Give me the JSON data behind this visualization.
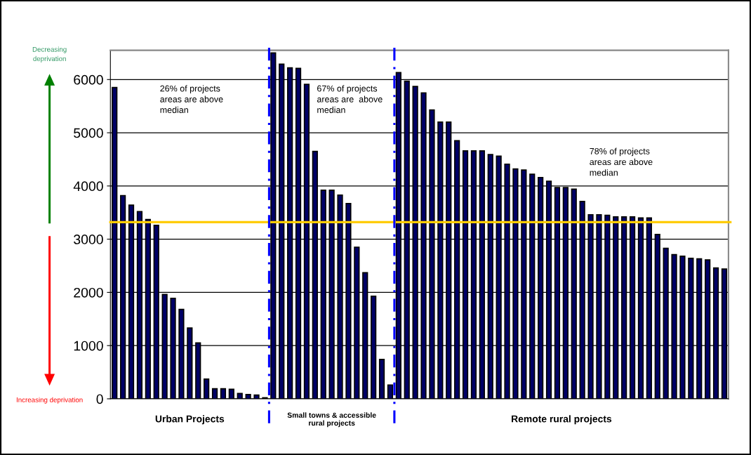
{
  "chart_data": {
    "type": "bar",
    "categories": [
      null,
      null,
      null,
      null,
      null,
      null,
      null,
      null,
      null,
      null,
      null,
      null,
      null,
      null,
      null,
      null,
      null,
      null,
      null,
      null,
      null,
      null,
      null,
      null,
      null,
      null,
      null,
      null,
      null,
      null,
      null,
      null,
      null,
      null,
      null,
      null,
      null,
      null,
      null,
      null,
      null,
      null,
      null,
      null,
      null,
      null,
      null,
      null,
      null,
      null,
      null,
      null,
      null,
      null,
      null,
      null,
      null,
      null,
      null,
      null,
      null,
      null,
      null,
      null,
      null,
      null,
      null,
      null,
      null,
      null,
      null,
      null,
      null,
      null
    ],
    "values": [
      5850,
      3820,
      3640,
      3520,
      3370,
      3260,
      1960,
      1890,
      1680,
      1330,
      1050,
      370,
      190,
      190,
      180,
      100,
      80,
      70,
      20,
      6500,
      6290,
      6220,
      6210,
      5910,
      4650,
      3920,
      3920,
      3830,
      3670,
      2850,
      2370,
      1930,
      740,
      260,
      6130,
      5970,
      5870,
      5750,
      5430,
      5200,
      5200,
      4850,
      4660,
      4660,
      4660,
      4590,
      4560,
      4410,
      4320,
      4300,
      4220,
      4160,
      4090,
      3970,
      3970,
      3940,
      3710,
      3460,
      3460,
      3450,
      3420,
      3420,
      3420,
      3400,
      3400,
      3090,
      2830,
      2710,
      2680,
      2640,
      2630,
      2610,
      2460,
      2440
    ],
    "color": "#000066",
    "ylim": [
      0,
      6550
    ],
    "yticks": [
      0,
      1000,
      2000,
      3000,
      4000,
      5000,
      6000
    ],
    "grid": "y",
    "ref_lines": [
      {
        "axis": "y",
        "value": 3320,
        "color": "#ffcc00",
        "line_style": "solid"
      }
    ],
    "annotations": [
      "Urban Projects",
      "Small towns & accessible\nrural projects",
      "Remote rural projects",
      "26% of projects\nareas are above\nmedian",
      "67% of projects\nareas are  above\nmedian",
      "78% of projects\nareas are above\nmedian",
      "Decreasing\ndeprivation",
      "Increasing deprivation"
    ]
  }
}
